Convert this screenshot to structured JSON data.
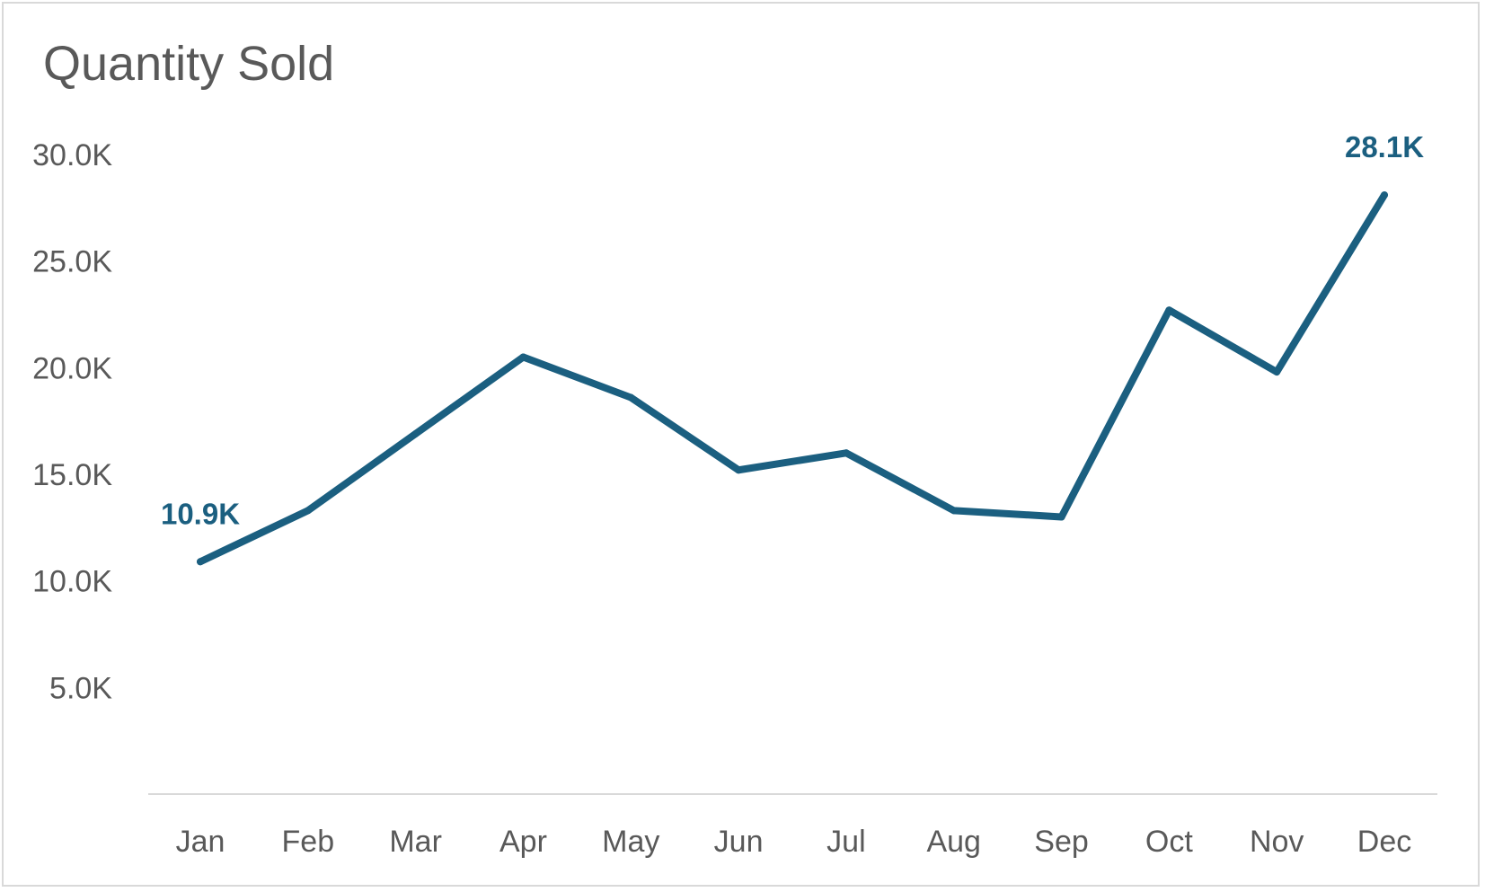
{
  "chart_data": {
    "type": "line",
    "title": "Quantity Sold",
    "xlabel": "",
    "ylabel": "",
    "categories": [
      "Jan",
      "Feb",
      "Mar",
      "Apr",
      "May",
      "Jun",
      "Jul",
      "Aug",
      "Sep",
      "Oct",
      "Nov",
      "Dec"
    ],
    "series": [
      {
        "values": [
          10900,
          13300,
          16900,
          20500,
          18600,
          15200,
          16000,
          13300,
          13000,
          22700,
          19800,
          28100
        ],
        "color": "#1b5f80"
      }
    ],
    "y_ticks": [
      {
        "value": 5000,
        "label": "5.0K"
      },
      {
        "value": 10000,
        "label": "10.0K"
      },
      {
        "value": 15000,
        "label": "15.0K"
      },
      {
        "value": 20000,
        "label": "20.0K"
      },
      {
        "value": 25000,
        "label": "25.0K"
      },
      {
        "value": 30000,
        "label": "30.0K"
      }
    ],
    "ylim": [
      0,
      30000
    ],
    "grid": false,
    "legend": "none",
    "data_labels": [
      {
        "category": "Jan",
        "text": "10.9K"
      },
      {
        "category": "Dec",
        "text": "28.1K"
      }
    ],
    "colors": {
      "line": "#1b5f80",
      "axis": "#d9d9d9",
      "text": "#595959",
      "border": "#d9d9d9"
    }
  }
}
